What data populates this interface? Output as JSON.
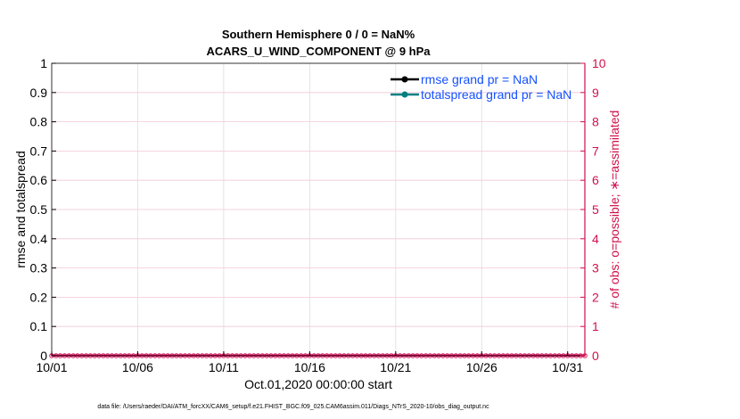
{
  "chart_data": {
    "type": "line",
    "title": [
      "Southern Hemisphere 0 / 0 = NaN%",
      "ACARS_U_WIND_COMPONENT @ 9 hPa"
    ],
    "xlabel": "Oct.01,2020 00:00:00 start",
    "ylabel_left": "rmse and totalspread",
    "ylabel_right": "# of obs: o=possible; ∗=assimilated",
    "footer": "data file: /Users/raeder/DAI/ATM_forcXX/CAM6_setup/f.e21.FHIST_BGC.f09_025.CAM6assim.011/Diags_NTrS_2020-10/obs_diag_output.nc",
    "xlim": [
      "10/01",
      "11/01"
    ],
    "x_tick_labels": [
      "10/01",
      "10/06",
      "10/11",
      "10/16",
      "10/21",
      "10/26",
      "10/31"
    ],
    "ylim_left": [
      0,
      1
    ],
    "y_tick_labels_left": [
      "0",
      "0.1",
      "0.2",
      "0.3",
      "0.4",
      "0.5",
      "0.6",
      "0.7",
      "0.8",
      "0.9",
      "1"
    ],
    "ylim_right": [
      0,
      10
    ],
    "y_tick_labels_right": [
      "0",
      "1",
      "2",
      "3",
      "4",
      "5",
      "6",
      "7",
      "8",
      "9",
      "10"
    ],
    "grid": true,
    "legend_placement": "top-right",
    "series": [
      {
        "name": "rmse grand pr = NaN",
        "axis": "left",
        "color": "#000000",
        "values": []
      },
      {
        "name": "totalspread grand pr = NaN",
        "axis": "left",
        "color": "#008080",
        "values": []
      },
      {
        "name": "obs possible",
        "axis": "right",
        "color": "#d81b60",
        "marker": "o",
        "interval_hours": 6,
        "values_all": 0
      },
      {
        "name": "obs assimilated",
        "axis": "right",
        "color": "#d81b60",
        "marker": "*",
        "interval_hours": 6,
        "values_all": 0
      }
    ],
    "colors": {
      "left_axis": "#000000",
      "right_axis": "#d0104c",
      "legend_text": "#1450ff",
      "grid_x": "#dddddd",
      "grid_y": "#f3c6d6"
    }
  }
}
